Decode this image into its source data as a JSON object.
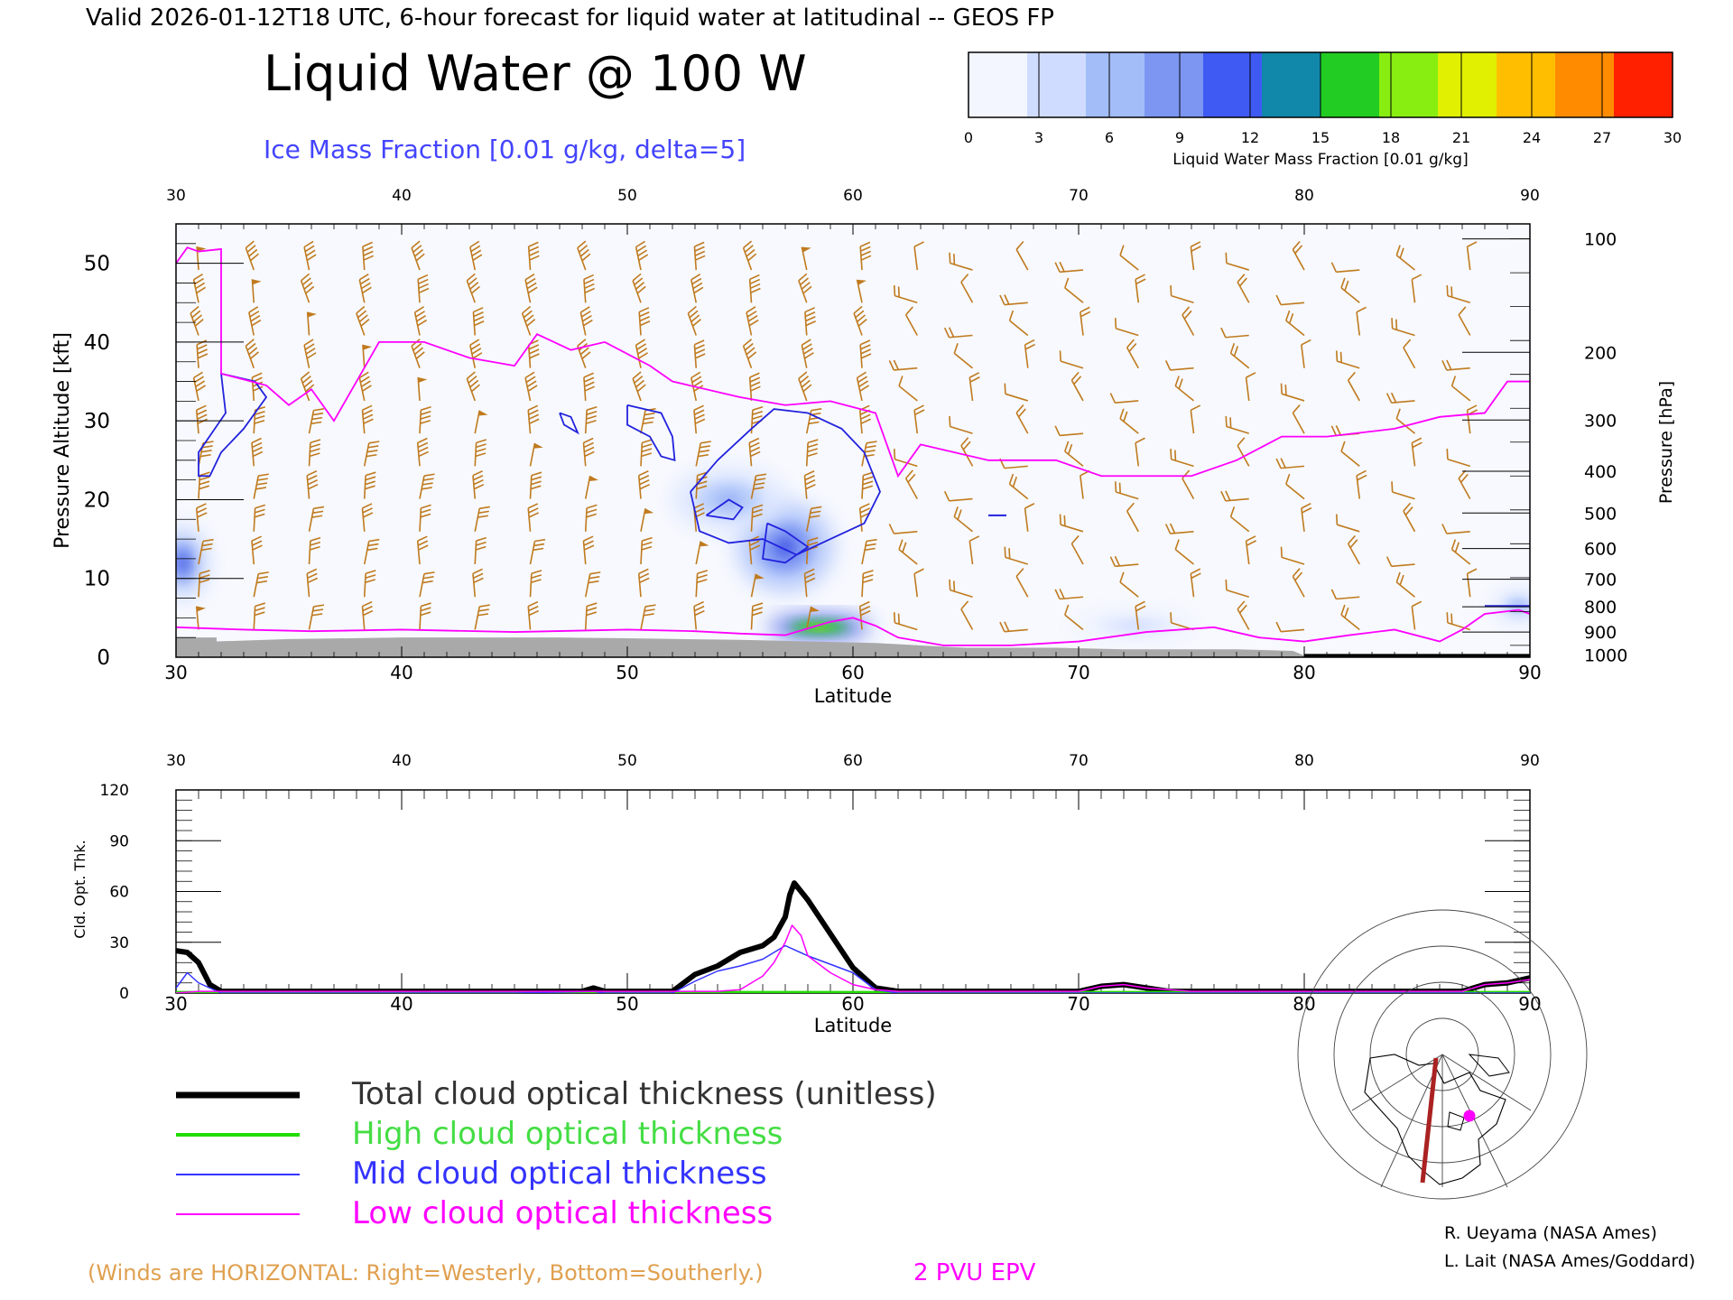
{
  "header": {
    "valid_line": "Valid 2026-01-12T18 UTC, 6-hour forecast for liquid water at latitudinal -- GEOS FP",
    "main_title": "Liquid Water @ 100 W",
    "contour_label": "Ice Mass Fraction [0.01 g/kg, delta=5]"
  },
  "colorbar": {
    "ticks": [
      "0",
      "3",
      "6",
      "9",
      "12",
      "15",
      "18",
      "21",
      "24",
      "27",
      "30"
    ],
    "label": "Liquid Water Mass Fraction [0.01 g/kg]",
    "colors": [
      "#f3f6ff",
      "#cfdcff",
      "#a3bdf9",
      "#7c96f2",
      "#3f5af2",
      "#1188aa",
      "#22cc22",
      "#88ee11",
      "#e0f000",
      "#ffbf00",
      "#ff8c00",
      "#ff2000"
    ]
  },
  "chart_data": [
    {
      "type": "heatmap",
      "title": "Liquid Water @ 100 W",
      "xlabel": "Latitude",
      "ylabel_left": "Pressure Altitude [kft]",
      "ylabel_right": "Pressure [hPa]",
      "xlim": [
        30,
        90
      ],
      "ylim": [
        0,
        55
      ],
      "x_ticks": [
        "30",
        "40",
        "50",
        "60",
        "70",
        "80",
        "90"
      ],
      "y_ticks": [
        "0",
        "10",
        "20",
        "30",
        "40",
        "50"
      ],
      "pressure_ticks": [
        {
          "label": "100",
          "alt": 53.1
        },
        {
          "label": "200",
          "alt": 38.7
        },
        {
          "label": "300",
          "alt": 30.1
        },
        {
          "label": "400",
          "alt": 23.6
        },
        {
          "label": "500",
          "alt": 18.3
        },
        {
          "label": "600",
          "alt": 13.8
        },
        {
          "label": "700",
          "alt": 9.9
        },
        {
          "label": "800",
          "alt": 6.4
        },
        {
          "label": "900",
          "alt": 3.2
        },
        {
          "label": "1000",
          "alt": 0.3
        }
      ],
      "liquid_water_blobs": [
        {
          "lat": 58.5,
          "alt": 3.8,
          "value": 30,
          "spread_lat": 1.6,
          "spread_alt": 1.0
        },
        {
          "lat": 57.0,
          "alt": 14.0,
          "value": 9,
          "spread_lat": 1.5,
          "spread_alt": 4.0
        },
        {
          "lat": 54.5,
          "alt": 20.0,
          "value": 5,
          "spread_lat": 1.8,
          "spread_alt": 3.0
        },
        {
          "lat": 30.3,
          "alt": 12.0,
          "value": 10,
          "spread_lat": 0.7,
          "spread_alt": 3.0
        },
        {
          "lat": 72.5,
          "alt": 4.0,
          "value": 2,
          "spread_lat": 2.0,
          "spread_alt": 1.5
        },
        {
          "lat": 89.5,
          "alt": 6.5,
          "value": 4,
          "spread_lat": 0.8,
          "spread_alt": 1.5
        }
      ],
      "ice_contours": [
        [
          [
            52.8,
            21
          ],
          [
            54,
            25
          ],
          [
            55.5,
            29
          ],
          [
            56.5,
            31.5
          ],
          [
            58,
            31
          ],
          [
            59.5,
            29
          ],
          [
            60.5,
            26
          ],
          [
            61.2,
            21
          ],
          [
            60.5,
            17
          ],
          [
            59,
            15
          ],
          [
            57.5,
            13
          ],
          [
            56,
            15
          ],
          [
            54.5,
            14.5
          ],
          [
            53.2,
            16
          ],
          [
            52.8,
            21
          ]
        ],
        [
          [
            56.2,
            17
          ],
          [
            57,
            16
          ],
          [
            58,
            14
          ],
          [
            57,
            12
          ],
          [
            56,
            12.5
          ],
          [
            56.2,
            17
          ]
        ],
        [
          [
            53.5,
            18
          ],
          [
            54.5,
            20
          ],
          [
            55.1,
            19
          ],
          [
            54.7,
            17.5
          ],
          [
            53.5,
            18
          ]
        ],
        [
          [
            50,
            32
          ],
          [
            51.5,
            31
          ],
          [
            52,
            28
          ],
          [
            52.1,
            25
          ],
          [
            51.5,
            25.5
          ],
          [
            51,
            28
          ],
          [
            50,
            29.5
          ],
          [
            50,
            32
          ]
        ],
        [
          [
            47,
            31
          ],
          [
            47.5,
            30.5
          ],
          [
            47.8,
            28.5
          ],
          [
            47.2,
            29.5
          ],
          [
            47,
            31
          ]
        ],
        [
          [
            32,
            36
          ],
          [
            33.5,
            35
          ],
          [
            34,
            33
          ],
          [
            33,
            29
          ],
          [
            32,
            26
          ],
          [
            31.5,
            23
          ],
          [
            31,
            23
          ],
          [
            31,
            26
          ],
          [
            32.2,
            31
          ],
          [
            32,
            36
          ]
        ]
      ],
      "epv_2pvu_line": [
        [
          30,
          50
        ],
        [
          30.5,
          52
        ],
        [
          31,
          51.5
        ],
        [
          32,
          51.8
        ],
        [
          32,
          36
        ],
        [
          34,
          34.5
        ],
        [
          35,
          32
        ],
        [
          36,
          34
        ],
        [
          37,
          30
        ],
        [
          38,
          35
        ],
        [
          39,
          40
        ],
        [
          41,
          40
        ],
        [
          43,
          38
        ],
        [
          45,
          37
        ],
        [
          46,
          41
        ],
        [
          47.5,
          39
        ],
        [
          49,
          40
        ],
        [
          51,
          37
        ],
        [
          52,
          35
        ],
        [
          55,
          33
        ],
        [
          57,
          32
        ],
        [
          59,
          32.5
        ],
        [
          61,
          31
        ],
        [
          62,
          23
        ],
        [
          63,
          27
        ],
        [
          66,
          25
        ],
        [
          69,
          25
        ],
        [
          71,
          23
        ],
        [
          75,
          23
        ],
        [
          77,
          25
        ],
        [
          79,
          28
        ],
        [
          81,
          28
        ],
        [
          84,
          29
        ],
        [
          86,
          30.5
        ],
        [
          88,
          31
        ],
        [
          89,
          35
        ],
        [
          90,
          35
        ]
      ],
      "epv_2pvu_low": [
        [
          30,
          3.8
        ],
        [
          33,
          3.5
        ],
        [
          36,
          3.3
        ],
        [
          40,
          3.5
        ],
        [
          45,
          3.2
        ],
        [
          50,
          3.5
        ],
        [
          53,
          3.3
        ],
        [
          55,
          3.0
        ],
        [
          57,
          2.8
        ],
        [
          59,
          4.5
        ],
        [
          60,
          5.0
        ],
        [
          61,
          4.0
        ],
        [
          62,
          2.5
        ],
        [
          64,
          1.5
        ],
        [
          67,
          1.5
        ],
        [
          70,
          2.0
        ],
        [
          73,
          3.2
        ],
        [
          76,
          3.8
        ],
        [
          78,
          2.5
        ],
        [
          80,
          2.0
        ],
        [
          82,
          2.8
        ],
        [
          84,
          3.5
        ],
        [
          86,
          2.0
        ],
        [
          87,
          3.5
        ],
        [
          88,
          5.5
        ],
        [
          89.5,
          6.0
        ],
        [
          90,
          5.5
        ]
      ],
      "terrain": [
        [
          30,
          2.5
        ],
        [
          31.8,
          2.5
        ],
        [
          31.8,
          2.0
        ],
        [
          35,
          2.3
        ],
        [
          40,
          2.5
        ],
        [
          47,
          2.5
        ],
        [
          50,
          2.4
        ],
        [
          55,
          2.2
        ],
        [
          58,
          2.0
        ],
        [
          61,
          1.8
        ],
        [
          65,
          1.2
        ],
        [
          69,
          1.2
        ],
        [
          72,
          1.0
        ],
        [
          77,
          1.0
        ],
        [
          79.5,
          0.8
        ],
        [
          80,
          0.2
        ],
        [
          90,
          0.2
        ]
      ],
      "wind_barbs": "orange barbs on a regular lat-altitude grid"
    },
    {
      "type": "line",
      "xlabel": "Latitude",
      "ylabel": "Cld. Opt. Thk.",
      "xlim": [
        30,
        90
      ],
      "ylim": [
        0,
        120
      ],
      "x_ticks": [
        "30",
        "40",
        "50",
        "60",
        "70",
        "80",
        "90"
      ],
      "y_ticks": [
        "0",
        "30",
        "60",
        "90",
        "120"
      ],
      "series": [
        {
          "name": "Total cloud optical thickness (unitless)",
          "color": "#000000",
          "width": 6,
          "points": [
            [
              30,
              25
            ],
            [
              30.5,
              24
            ],
            [
              31,
              18
            ],
            [
              31.5,
              5
            ],
            [
              32,
              1
            ],
            [
              35,
              1
            ],
            [
              40,
              1
            ],
            [
              45,
              1
            ],
            [
              48,
              1
            ],
            [
              48.5,
              3
            ],
            [
              49,
              1
            ],
            [
              52,
              1
            ],
            [
              52.5,
              6
            ],
            [
              53,
              11
            ],
            [
              54,
              16
            ],
            [
              54.5,
              20
            ],
            [
              55,
              24
            ],
            [
              56,
              28
            ],
            [
              56.5,
              33
            ],
            [
              57,
              45
            ],
            [
              57.2,
              58
            ],
            [
              57.4,
              65
            ],
            [
              57.7,
              60
            ],
            [
              58,
              55
            ],
            [
              58.5,
              45
            ],
            [
              59,
              35
            ],
            [
              59.5,
              25
            ],
            [
              60,
              15
            ],
            [
              61,
              3
            ],
            [
              62,
              1
            ],
            [
              70,
              1
            ],
            [
              71,
              4
            ],
            [
              72,
              5
            ],
            [
              73,
              3
            ],
            [
              74,
              1
            ],
            [
              80,
              1
            ],
            [
              87,
              1
            ],
            [
              88,
              5
            ],
            [
              89,
              6
            ],
            [
              90,
              9
            ]
          ]
        },
        {
          "name": "High cloud optical thickness",
          "color": "#22dd00",
          "width": 3,
          "points": [
            [
              30,
              0.5
            ],
            [
              40,
              0.5
            ],
            [
              50,
              0.5
            ],
            [
              55,
              0.5
            ],
            [
              60,
              0.5
            ],
            [
              70,
              0.5
            ],
            [
              80,
              0.5
            ],
            [
              90,
              0.5
            ]
          ]
        },
        {
          "name": "Mid cloud optical thickness",
          "color": "#3333ff",
          "width": 1.5,
          "points": [
            [
              30,
              3
            ],
            [
              30.5,
              12
            ],
            [
              31,
              6
            ],
            [
              32,
              0
            ],
            [
              35,
              0
            ],
            [
              40,
              0
            ],
            [
              45,
              0
            ],
            [
              48.5,
              1
            ],
            [
              49,
              0
            ],
            [
              52,
              0
            ],
            [
              53,
              7
            ],
            [
              54,
              13
            ],
            [
              55,
              16
            ],
            [
              56,
              20
            ],
            [
              57,
              28
            ],
            [
              58,
              22
            ],
            [
              59,
              17
            ],
            [
              60,
              12
            ],
            [
              61,
              2
            ],
            [
              62,
              0
            ],
            [
              70,
              0
            ],
            [
              90,
              0
            ]
          ]
        },
        {
          "name": "Low cloud optical thickness",
          "color": "#ff00ff",
          "width": 1.5,
          "points": [
            [
              30,
              0
            ],
            [
              31,
              1
            ],
            [
              35,
              1
            ],
            [
              40,
              1
            ],
            [
              48,
              1
            ],
            [
              52,
              1
            ],
            [
              54,
              1
            ],
            [
              55,
              2
            ],
            [
              56,
              10
            ],
            [
              56.5,
              18
            ],
            [
              57,
              30
            ],
            [
              57.3,
              40
            ],
            [
              57.7,
              34
            ],
            [
              58,
              22
            ],
            [
              59,
              12
            ],
            [
              60,
              5
            ],
            [
              61,
              2
            ],
            [
              62,
              1
            ],
            [
              70,
              1
            ],
            [
              71,
              4
            ],
            [
              72,
              5
            ],
            [
              73,
              3
            ],
            [
              75,
              1
            ],
            [
              80,
              1
            ],
            [
              87,
              1
            ],
            [
              88,
              5
            ],
            [
              89,
              6
            ],
            [
              90,
              8
            ]
          ]
        }
      ]
    }
  ],
  "legend": [
    {
      "label": "Total cloud optical thickness (unitless)",
      "color": "#000000"
    },
    {
      "label": "High cloud optical thickness",
      "color": "#22dd00"
    },
    {
      "label": "Mid cloud optical thickness",
      "color": "#3333ff"
    },
    {
      "label": "Low cloud optical thickness",
      "color": "#ff00ff"
    }
  ],
  "footer": {
    "winds_note": "(Winds are HORIZONTAL: Right=Westerly, Bottom=Southerly.)",
    "epv_label": "2 PVU EPV",
    "credit_1": "R. Ueyama (NASA Ames)",
    "credit_2": "L. Lait (NASA Ames/Goddard)"
  },
  "colors": {
    "wind": "#c07a1e",
    "epv": "#ff00ff",
    "ice_contour": "#2222dd",
    "terrain": "#a9a9a9",
    "contour_label": "#4444ff"
  }
}
